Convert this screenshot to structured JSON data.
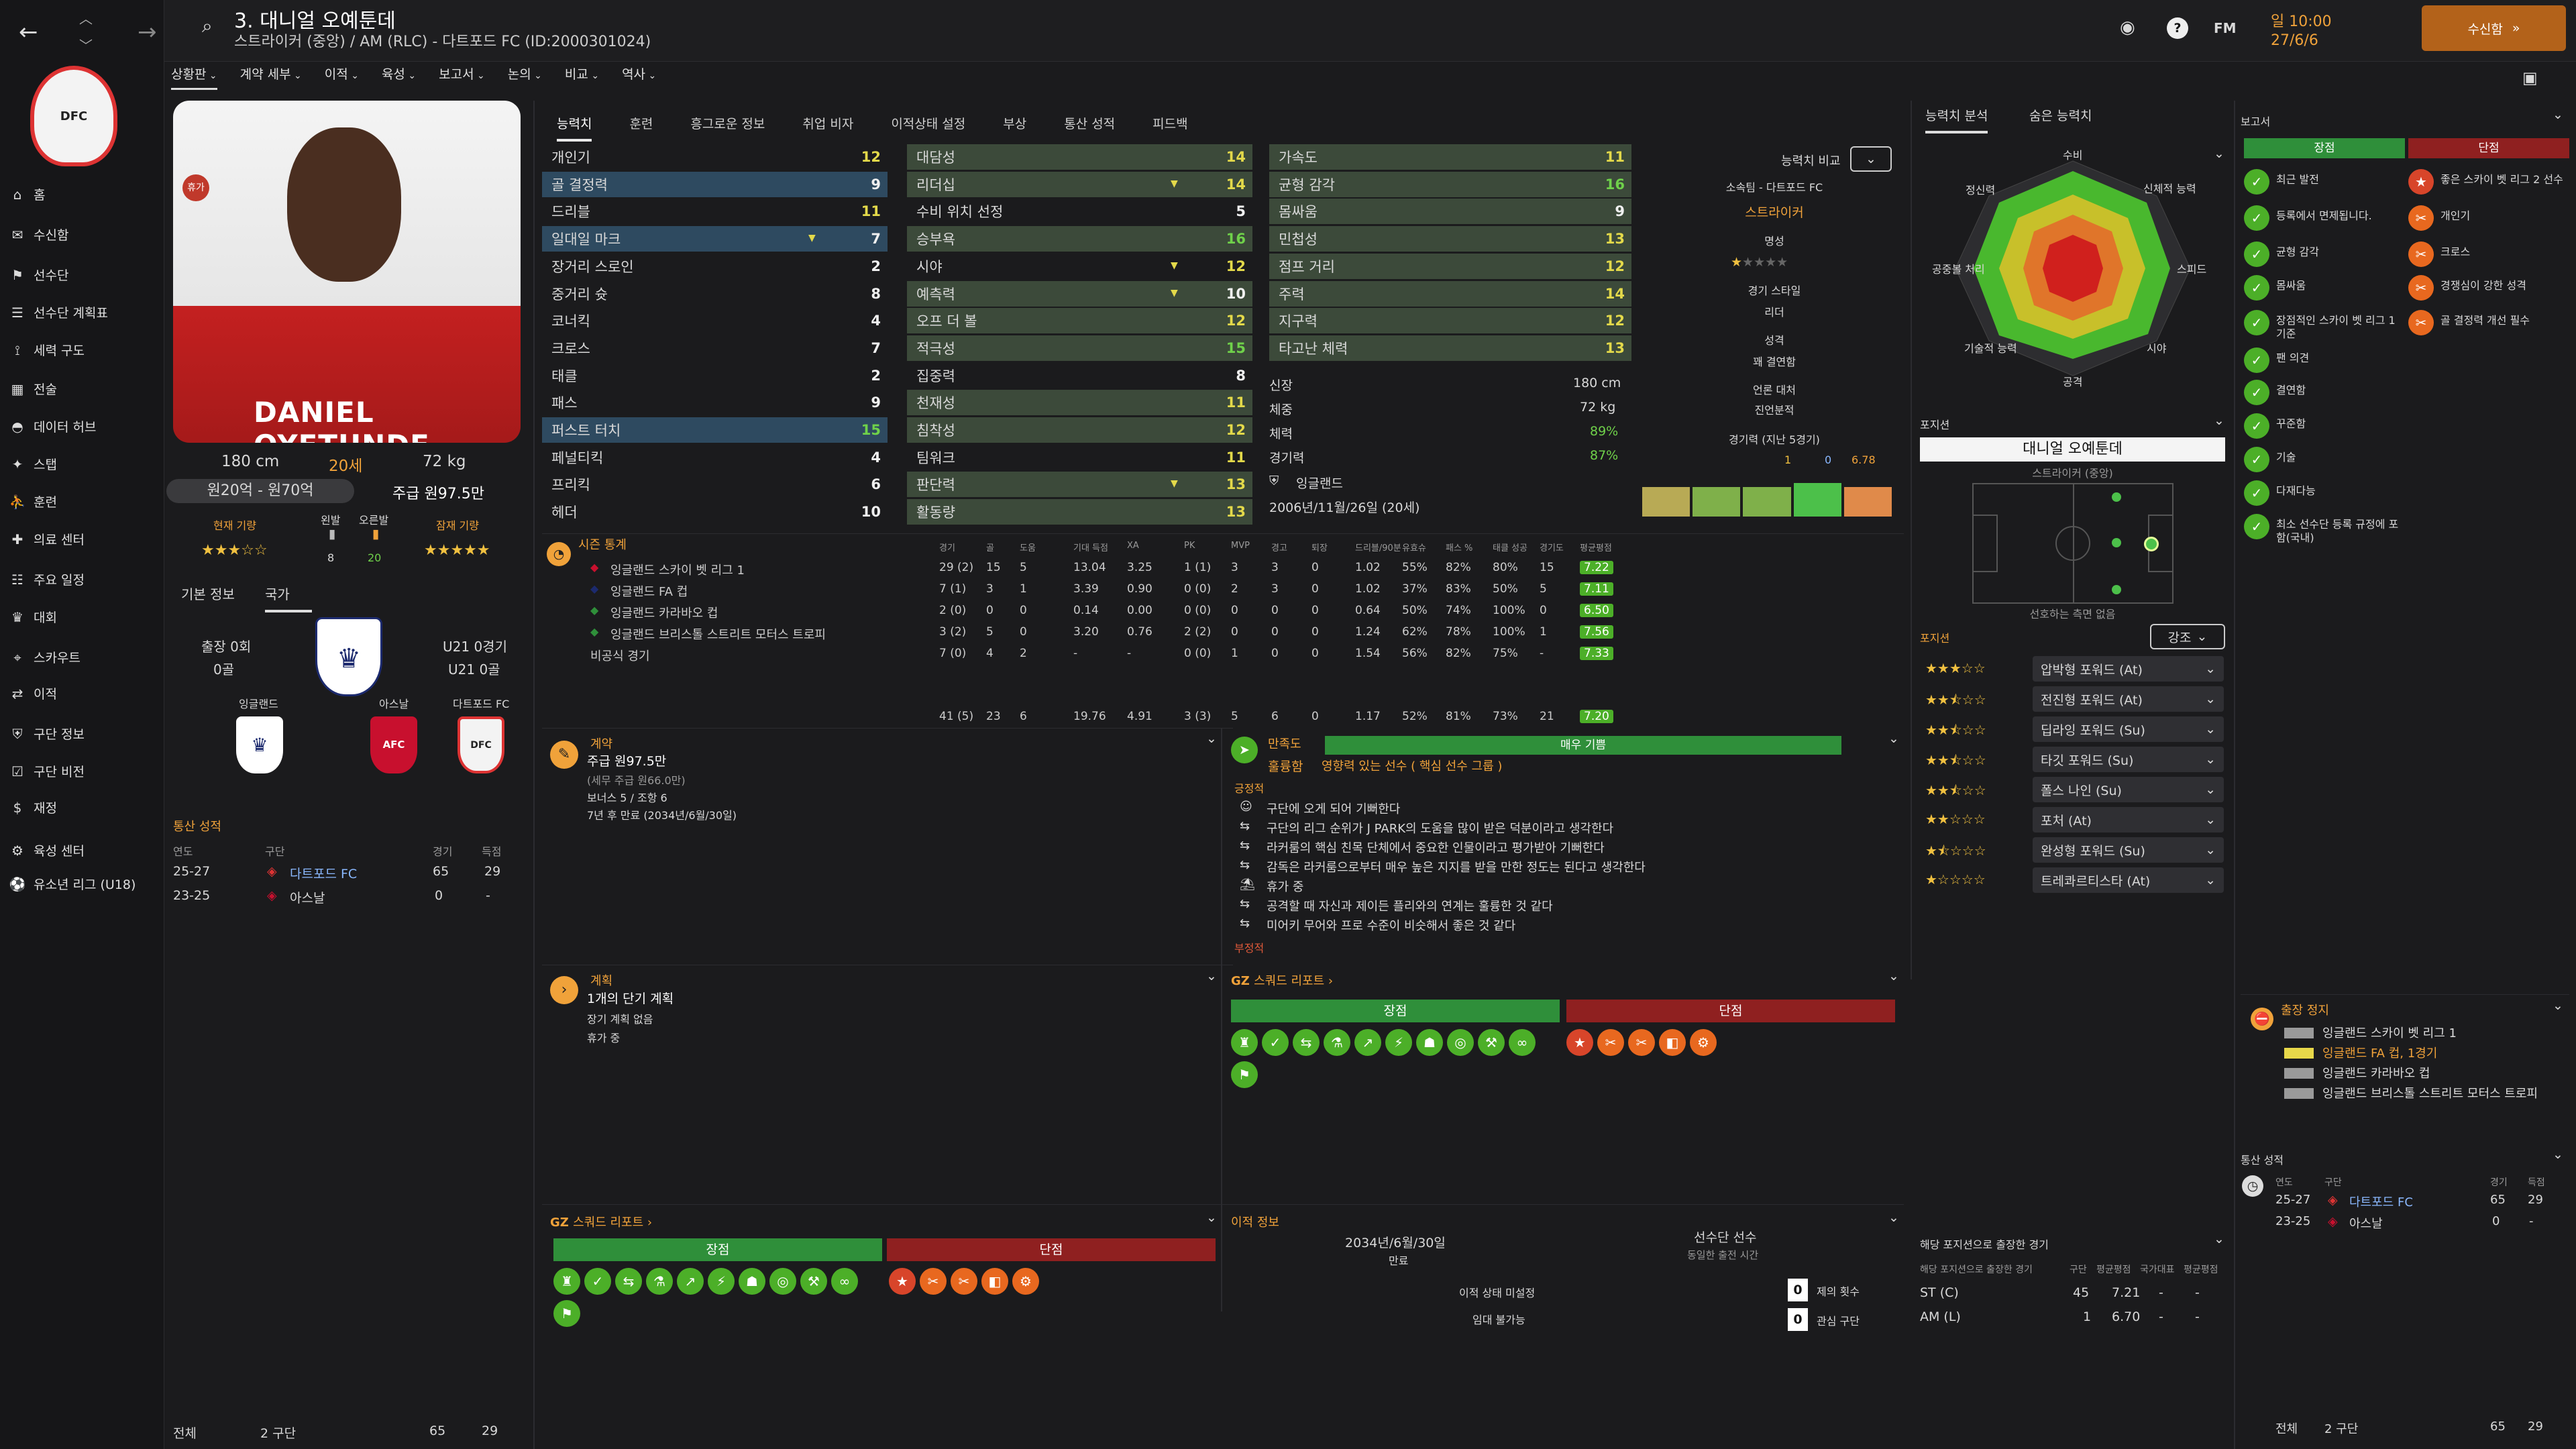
{
  "header": {
    "player_title": "3. 대니얼 오예툰데",
    "player_subtitle": "스트라이커 (중앙) / AM (RLC) - 다트포드 FC (ID:2000301024)",
    "date_label": "일 10:00",
    "date": "27/6/6",
    "continue_button": "수신함",
    "fm_label": "FM"
  },
  "subnav": [
    "상황판",
    "계약 세부",
    "이적",
    "육성",
    "보고서",
    "논의",
    "비교",
    "역사"
  ],
  "sidebar": {
    "items": [
      "홈",
      "수신함",
      "선수단",
      "선수단 계획표",
      "세력 구도",
      "전술",
      "데이터 허브",
      "스탭",
      "훈련",
      "의료 센터",
      "주요 일정",
      "대회",
      "스카우트",
      "이적",
      "구단 정보",
      "구단 비전",
      "재정",
      "육성 센터",
      "유소년 리그 (U18)"
    ]
  },
  "player": {
    "shirt_name": "DANIEL OYETUNDE",
    "height": "180 cm",
    "age": "20세",
    "weight": "72 kg",
    "value": "원20억 - 원70억",
    "wage": "주급 원97.5만",
    "current_ability_label": "현재 기량",
    "potential_label": "잠재 기량",
    "foot_left_label": "왼발",
    "foot_left_val": "8",
    "foot_right_label": "오른발",
    "foot_right_val": "20",
    "status_badge": "휴가"
  },
  "basic_tabs": [
    "기본 정보",
    "국가"
  ],
  "nation": {
    "caps": "출장 0회",
    "goals": "0골",
    "u21_caps": "U21 0경기",
    "u21_goals": "U21 0골",
    "nation_name": "잉글랜드",
    "club1": "아스날",
    "club2": "다트포드 FC"
  },
  "career_left": {
    "title": "통산 성적",
    "headers": [
      "연도",
      "구단",
      "경기",
      "득점"
    ],
    "rows": [
      {
        "year": "25-27",
        "club": "다트포드 FC",
        "apps": "65",
        "goals": "29"
      },
      {
        "year": "23-25",
        "club": "아스날",
        "apps": "0",
        "goals": "-"
      }
    ],
    "total_label": "전체",
    "total_clubs": "2 구단",
    "total_apps": "65",
    "total_goals": "29"
  },
  "main_tabs": [
    "능력치",
    "훈련",
    "흥그로운 정보",
    "취업 비자",
    "이적상태 설정",
    "부상",
    "통산 성적",
    "피드백"
  ],
  "attributes": {
    "technical": [
      {
        "name": "개인기",
        "value": "12"
      },
      {
        "name": "골 결정력",
        "value": "9"
      },
      {
        "name": "드리블",
        "value": "11"
      },
      {
        "name": "일대일 마크",
        "value": "7"
      },
      {
        "name": "장거리 스로인",
        "value": "2"
      },
      {
        "name": "중거리 슛",
        "value": "8"
      },
      {
        "name": "코너킥",
        "value": "4"
      },
      {
        "name": "크로스",
        "value": "7"
      },
      {
        "name": "태클",
        "value": "2"
      },
      {
        "name": "패스",
        "value": "9"
      },
      {
        "name": "퍼스트 터치",
        "value": "15"
      },
      {
        "name": "페널티킥",
        "value": "4"
      },
      {
        "name": "프리킥",
        "value": "6"
      },
      {
        "name": "헤더",
        "value": "10"
      }
    ],
    "mental": [
      {
        "name": "대담성",
        "value": "14"
      },
      {
        "name": "리더십",
        "value": "14"
      },
      {
        "name": "수비 위치 선정",
        "value": "5"
      },
      {
        "name": "승부욕",
        "value": "16"
      },
      {
        "name": "시야",
        "value": "12"
      },
      {
        "name": "예측력",
        "value": "10"
      },
      {
        "name": "오프 더 볼",
        "value": "12"
      },
      {
        "name": "적극성",
        "value": "15"
      },
      {
        "name": "집중력",
        "value": "8"
      },
      {
        "name": "천재성",
        "value": "11"
      },
      {
        "name": "침착성",
        "value": "12"
      },
      {
        "name": "팀워크",
        "value": "11"
      },
      {
        "name": "판단력",
        "value": "13"
      },
      {
        "name": "활동량",
        "value": "13"
      }
    ],
    "physical": [
      {
        "name": "가속도",
        "value": "11"
      },
      {
        "name": "균형 감각",
        "value": "16"
      },
      {
        "name": "몸싸움",
        "value": "9"
      },
      {
        "name": "민첩성",
        "value": "13"
      },
      {
        "name": "점프 거리",
        "value": "12"
      },
      {
        "name": "주력",
        "value": "14"
      },
      {
        "name": "지구력",
        "value": "12"
      },
      {
        "name": "타고난 체력",
        "value": "13"
      }
    ],
    "info": {
      "height_label": "신장",
      "height": "180 cm",
      "weight_label": "체중",
      "weight": "72 kg",
      "fitness_label": "체력",
      "fitness": "89%",
      "sharpness_label": "경기력",
      "sharpness": "87%",
      "nation": "잉글랜드",
      "dob": "2006년/11월/26일 (20세)"
    }
  },
  "compare": {
    "label": "능력치 비교",
    "club": "소속팀 - 다트포드 FC",
    "role": "스트라이커",
    "reputation_label": "명성",
    "style_label": "경기 스타일",
    "style_value": "리더",
    "personality_label": "성격",
    "personality_value": "꽤 결연함",
    "media_label": "언론 대처",
    "media_value": "진언분적",
    "form_label": "경기력 (지난 5경기)",
    "form_goals": "1",
    "form_assists": "0",
    "form_rating": "6.78"
  },
  "radar": {
    "tabs": [
      "능력치 분석",
      "숨은 능력치"
    ],
    "labels": [
      "수비",
      "신체적 능력",
      "스피드",
      "시야",
      "공격",
      "기술적 능력",
      "공중볼 처리",
      "정신력"
    ]
  },
  "position_panel": {
    "title": "포지션",
    "name_box": "대니얼 오예툰데",
    "role": "스트라이커 (중앙)",
    "note": "선호하는 측면 없음",
    "roles_title": "포지션",
    "emphasis": "강조",
    "roles": [
      "압박형 포워드 (At)",
      "전진형 포워드 (At)",
      "딥라잉 포워드 (Su)",
      "타깃 포워드 (Su)",
      "폴스 나인 (Su)",
      "포처 (At)",
      "완성형 포워드 (Su)",
      "트레콰르티스타 (At)"
    ],
    "exp_title": "해당 포지션으로 출장한 경기",
    "exp_headers": [
      "해당 포지션으로 출장한 경기",
      "구단",
      "평균평점",
      "국가대표",
      "평균평점"
    ],
    "exp_rows": [
      {
        "pos": "ST (C)",
        "apps": "45",
        "rating": "7.21",
        "intl": "-",
        "intl_rating": "-"
      },
      {
        "pos": "AM (L)",
        "apps": "1",
        "rating": "6.70",
        "intl": "-",
        "intl_rating": "-"
      }
    ]
  },
  "season_stats": {
    "title": "시즌 통계",
    "headers": [
      "경기",
      "골",
      "도움",
      "기대 득점",
      "XA",
      "PK",
      "MVP",
      "경고",
      "퇴장",
      "드리블/90분",
      "유효슈",
      "패스 %",
      "태클 성공",
      "경기도",
      "평균평점"
    ],
    "rows": [
      {
        "comp": "잉글랜드 스카이 벳 리그 1",
        "vals": [
          "29 (2)",
          "15",
          "5",
          "13.04",
          "3.25",
          "1 (1)",
          "3",
          "3",
          "0",
          "1.02",
          "55%",
          "82%",
          "80%",
          "15",
          "7.22"
        ]
      },
      {
        "comp": "잉글랜드 FA 컵",
        "vals": [
          "7 (1)",
          "3",
          "1",
          "3.39",
          "0.90",
          "0 (0)",
          "2",
          "3",
          "0",
          "1.02",
          "37%",
          "83%",
          "50%",
          "5",
          "7.11"
        ]
      },
      {
        "comp": "잉글랜드 카라바오 컵",
        "vals": [
          "2 (0)",
          "0",
          "0",
          "0.14",
          "0.00",
          "0 (0)",
          "0",
          "0",
          "0",
          "0.64",
          "50%",
          "74%",
          "100%",
          "0",
          "6.50"
        ]
      },
      {
        "comp": "잉글랜드 브리스톨 스트리트 모터스 트로피",
        "vals": [
          "3 (2)",
          "5",
          "0",
          "3.20",
          "0.76",
          "2 (2)",
          "0",
          "0",
          "0",
          "1.24",
          "62%",
          "78%",
          "100%",
          "1",
          "7.56"
        ]
      },
      {
        "comp": "비공식 경기",
        "vals": [
          "7 (0)",
          "4",
          "2",
          "-",
          "-",
          "0 (0)",
          "1",
          "0",
          "0",
          "1.54",
          "56%",
          "82%",
          "75%",
          "-",
          "7.33"
        ]
      }
    ],
    "total": [
      "41 (5)",
      "23",
      "6",
      "19.76",
      "4.91",
      "3 (3)",
      "5",
      "6",
      "0",
      "1.17",
      "52%",
      "81%",
      "73%",
      "21",
      "7.20"
    ]
  },
  "contract": {
    "title": "계약",
    "wage": "주급 원97.5만",
    "wage_sub": "(세무 주급 원66.0만)",
    "bonus": "보너스 5 / 조항 6",
    "expiry": "7년 후 만료 (2034년/6월/30일)"
  },
  "plan": {
    "title": "계획",
    "headline": "1개의 단기 계획",
    "line1": "장기 계획 없음",
    "line2": "휴가 중"
  },
  "morale": {
    "title": "만족도",
    "bar": "매우 기쁨",
    "level": "훌륭함",
    "status": "영향력 있는 선수 ( 핵심 선수 그룹 )",
    "positive_label": "긍정적",
    "items": [
      "구단에 오게 되어 기뻐한다",
      "구단의 리그 순위가 J PARK의 도움을 많이 받은 덕분이라고 생각한다",
      "라커룸의 핵심 친목 단체에서 중요한 인물이라고 평가받아 기뻐한다",
      "감독은 라커룸으로부터 매우 높은 지지를 받을 만한 정도는 된다고 생각한다",
      "휴가 중",
      "공격할 때 자신과 제이든 플리와의 연계는 훌륭한 것 같다",
      "미어키 무어와 프로 수준이 비슷해서 좋은 것 같다"
    ],
    "negative_label": "부정적"
  },
  "scout_report": {
    "title": "스쿼드 리포트",
    "strengths": "장점",
    "weaknesses": "단점"
  },
  "transfer": {
    "title": "이적 정보",
    "expiry": "2034년/6월/30일",
    "expiry_label": "만료",
    "squad_status": "선수단 선수",
    "squad_status_sub": "동일한 출전 시간",
    "transfer_status": "이적 상태 미설정",
    "loan_status": "임대 불가능",
    "bids": "0",
    "bids_label": "제의 횟수",
    "interest": "0",
    "interest_label": "관심 구단"
  },
  "report": {
    "title": "보고서",
    "strengths": "장점",
    "weaknesses": "단점",
    "pros": [
      "최근 발전",
      "등록에서 면제됩니다.",
      "균형 감각",
      "몸싸움",
      "장점적인 스카이 벳 리그 1 기준",
      "팬 의견",
      "결연함",
      "꾸준함",
      "기술",
      "다재다능",
      "최소 선수단 등록 규정에 포함(국내)"
    ],
    "cons": [
      "좋은 스카이 벳 리그 2 선수",
      "개인기",
      "크로스",
      "경쟁심이 강한 성격",
      "골 결정력 개선 필수"
    ]
  },
  "suspension": {
    "title": "출장 정지",
    "rows": [
      "잉글랜드 스카이 벳 리그 1",
      "잉글랜드 FA 컵, 1경기",
      "잉글랜드 카라바오 컵",
      "잉글랜드 브리스톨 스트리트 모터스 트로피"
    ]
  },
  "career_right": {
    "title": "통산 성적",
    "headers": [
      "연도",
      "구단",
      "경기",
      "득점"
    ],
    "rows": [
      {
        "year": "25-27",
        "club": "다트포드 FC",
        "apps": "65",
        "goals": "29"
      },
      {
        "year": "23-25",
        "club": "아스날",
        "apps": "0",
        "goals": "-"
      }
    ],
    "total_label": "전체",
    "total_clubs": "2 구단",
    "total_apps": "65",
    "total_goals": "29"
  },
  "colors": {
    "accent_orange": "#f0a23a",
    "highlight_blue": "#2e4a60",
    "good_green": "#4caf28",
    "bad_red": "#d8452a"
  }
}
